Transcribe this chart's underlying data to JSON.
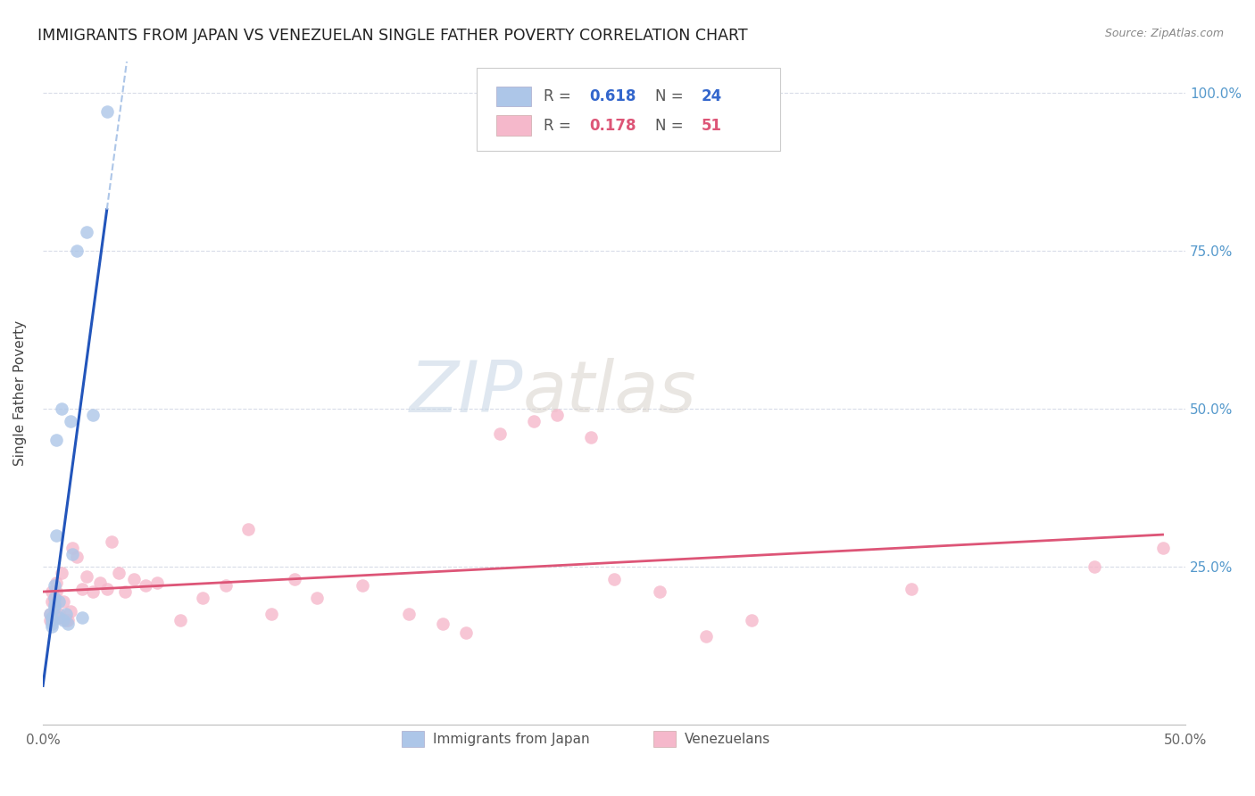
{
  "title": "IMMIGRANTS FROM JAPAN VS VENEZUELAN SINGLE FATHER POVERTY CORRELATION CHART",
  "source": "Source: ZipAtlas.com",
  "ylabel": "Single Father Poverty",
  "xlim": [
    0,
    0.5
  ],
  "ylim": [
    0,
    1.05
  ],
  "xtick_vals": [
    0.0,
    0.1,
    0.2,
    0.3,
    0.4,
    0.5
  ],
  "xtick_labels": [
    "0.0%",
    "",
    "",
    "",
    "",
    "50.0%"
  ],
  "ytick_vals": [
    0.25,
    0.5,
    0.75,
    1.0
  ],
  "ytick_labels": [
    "25.0%",
    "50.0%",
    "75.0%",
    "100.0%"
  ],
  "background_color": "#ffffff",
  "grid_color": "#d8dce8",
  "legend_R1": "0.618",
  "legend_N1": "24",
  "legend_R2": "0.178",
  "legend_N2": "51",
  "legend_label1": "Immigrants from Japan",
  "legend_label2": "Venezuelans",
  "blue_color": "#adc6e8",
  "pink_color": "#f5b8cb",
  "blue_line_color": "#2255bb",
  "pink_line_color": "#dd5577",
  "watermark_zip": "ZIP",
  "watermark_atlas": "atlas",
  "japan_x": [
    0.003,
    0.004,
    0.004,
    0.004,
    0.004,
    0.005,
    0.005,
    0.005,
    0.005,
    0.006,
    0.006,
    0.007,
    0.007,
    0.008,
    0.009,
    0.01,
    0.011,
    0.012,
    0.013,
    0.015,
    0.017,
    0.019,
    0.022,
    0.028
  ],
  "japan_y": [
    0.175,
    0.17,
    0.165,
    0.16,
    0.155,
    0.22,
    0.2,
    0.19,
    0.185,
    0.45,
    0.3,
    0.195,
    0.17,
    0.5,
    0.165,
    0.175,
    0.16,
    0.48,
    0.27,
    0.75,
    0.17,
    0.78,
    0.49,
    0.97
  ],
  "venezuela_x": [
    0.003,
    0.003,
    0.004,
    0.004,
    0.005,
    0.005,
    0.005,
    0.006,
    0.006,
    0.007,
    0.007,
    0.008,
    0.009,
    0.01,
    0.011,
    0.012,
    0.013,
    0.015,
    0.017,
    0.019,
    0.022,
    0.025,
    0.028,
    0.03,
    0.033,
    0.036,
    0.04,
    0.045,
    0.05,
    0.06,
    0.07,
    0.08,
    0.09,
    0.1,
    0.11,
    0.12,
    0.14,
    0.16,
    0.175,
    0.185,
    0.2,
    0.215,
    0.225,
    0.24,
    0.25,
    0.27,
    0.29,
    0.31,
    0.38,
    0.46,
    0.49
  ],
  "venezuela_y": [
    0.175,
    0.165,
    0.21,
    0.195,
    0.2,
    0.195,
    0.175,
    0.225,
    0.21,
    0.175,
    0.17,
    0.24,
    0.195,
    0.165,
    0.165,
    0.18,
    0.28,
    0.265,
    0.215,
    0.235,
    0.21,
    0.225,
    0.215,
    0.29,
    0.24,
    0.21,
    0.23,
    0.22,
    0.225,
    0.165,
    0.2,
    0.22,
    0.31,
    0.175,
    0.23,
    0.2,
    0.22,
    0.175,
    0.16,
    0.145,
    0.46,
    0.48,
    0.49,
    0.455,
    0.23,
    0.21,
    0.14,
    0.165,
    0.215,
    0.25,
    0.28
  ]
}
